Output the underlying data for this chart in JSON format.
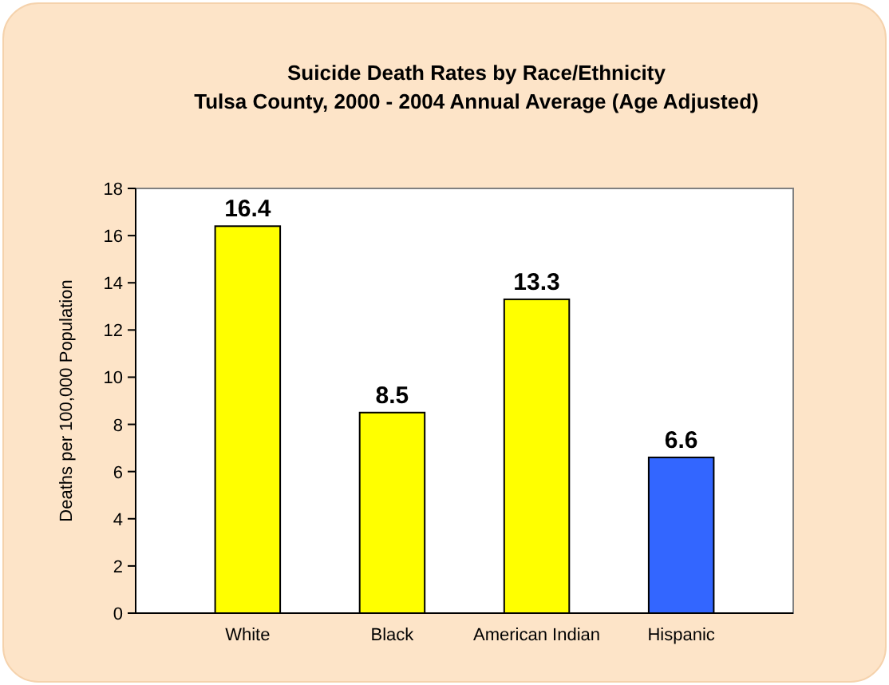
{
  "chart_data": {
    "type": "bar",
    "title": "Suicide Death Rates by Race/Ethnicity",
    "subtitle": "Tulsa County, 2000 - 2004 Annual Average (Age Adjusted)",
    "ylabel": "Deaths per 100,000 Population",
    "categories": [
      "White",
      "Black",
      "American Indian",
      "Hispanic"
    ],
    "values": [
      16.4,
      8.5,
      13.3,
      6.6
    ],
    "colors": [
      "#ffff00",
      "#ffff00",
      "#ffff00",
      "#3366ff"
    ],
    "ylim": [
      0,
      18
    ],
    "yticks": [
      0,
      2,
      4,
      6,
      8,
      10,
      12,
      14,
      16,
      18
    ],
    "data_labels": true,
    "grid": false
  }
}
